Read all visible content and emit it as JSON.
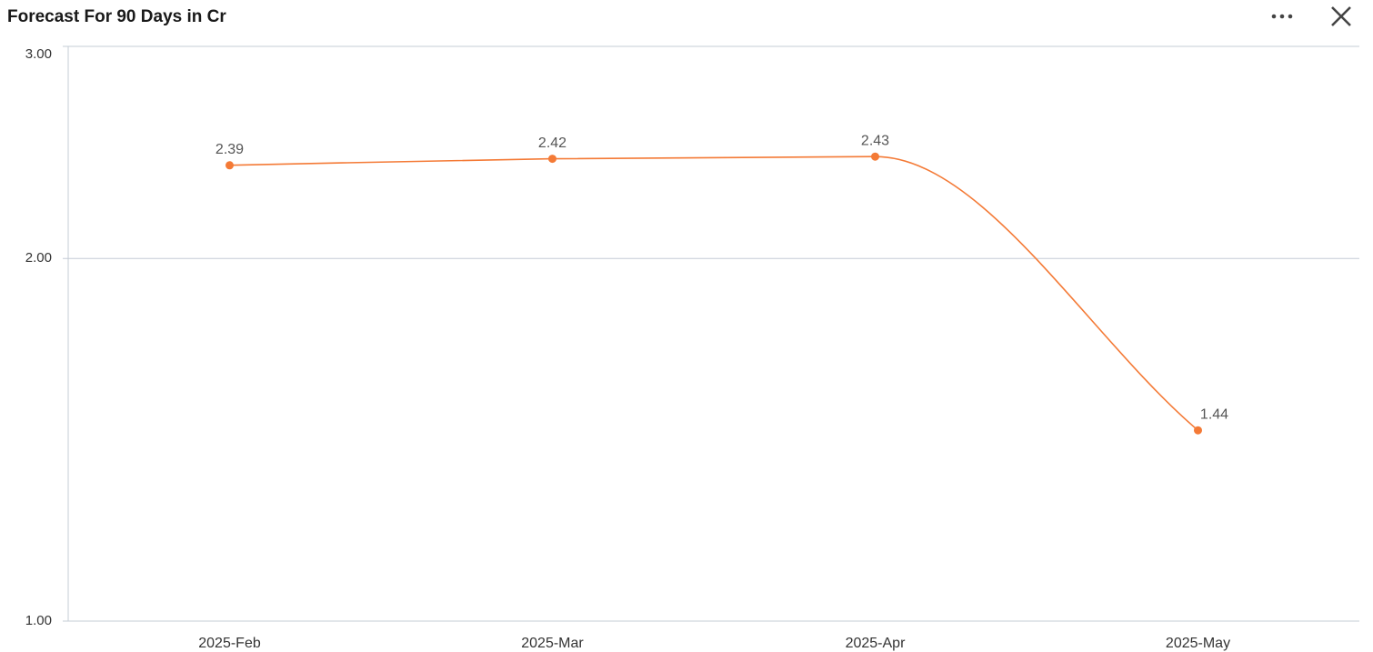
{
  "chart_data": {
    "type": "line",
    "title": "Forecast For 90 Days in Cr",
    "categories": [
      "2025-Feb",
      "2025-Mar",
      "2025-Apr",
      "2025-May"
    ],
    "series": [
      {
        "name": "Forecast",
        "color": "#f47a36",
        "values": [
          2.39,
          2.42,
          2.43,
          1.44
        ]
      }
    ],
    "ylim": [
      1,
      3
    ],
    "yticks": [
      {
        "value": 1,
        "label": "1.00"
      },
      {
        "value": 2,
        "label": "2.00"
      },
      {
        "value": 3,
        "label": "3.00"
      }
    ],
    "log_scale_y": true,
    "grid": true,
    "smooth": true
  }
}
